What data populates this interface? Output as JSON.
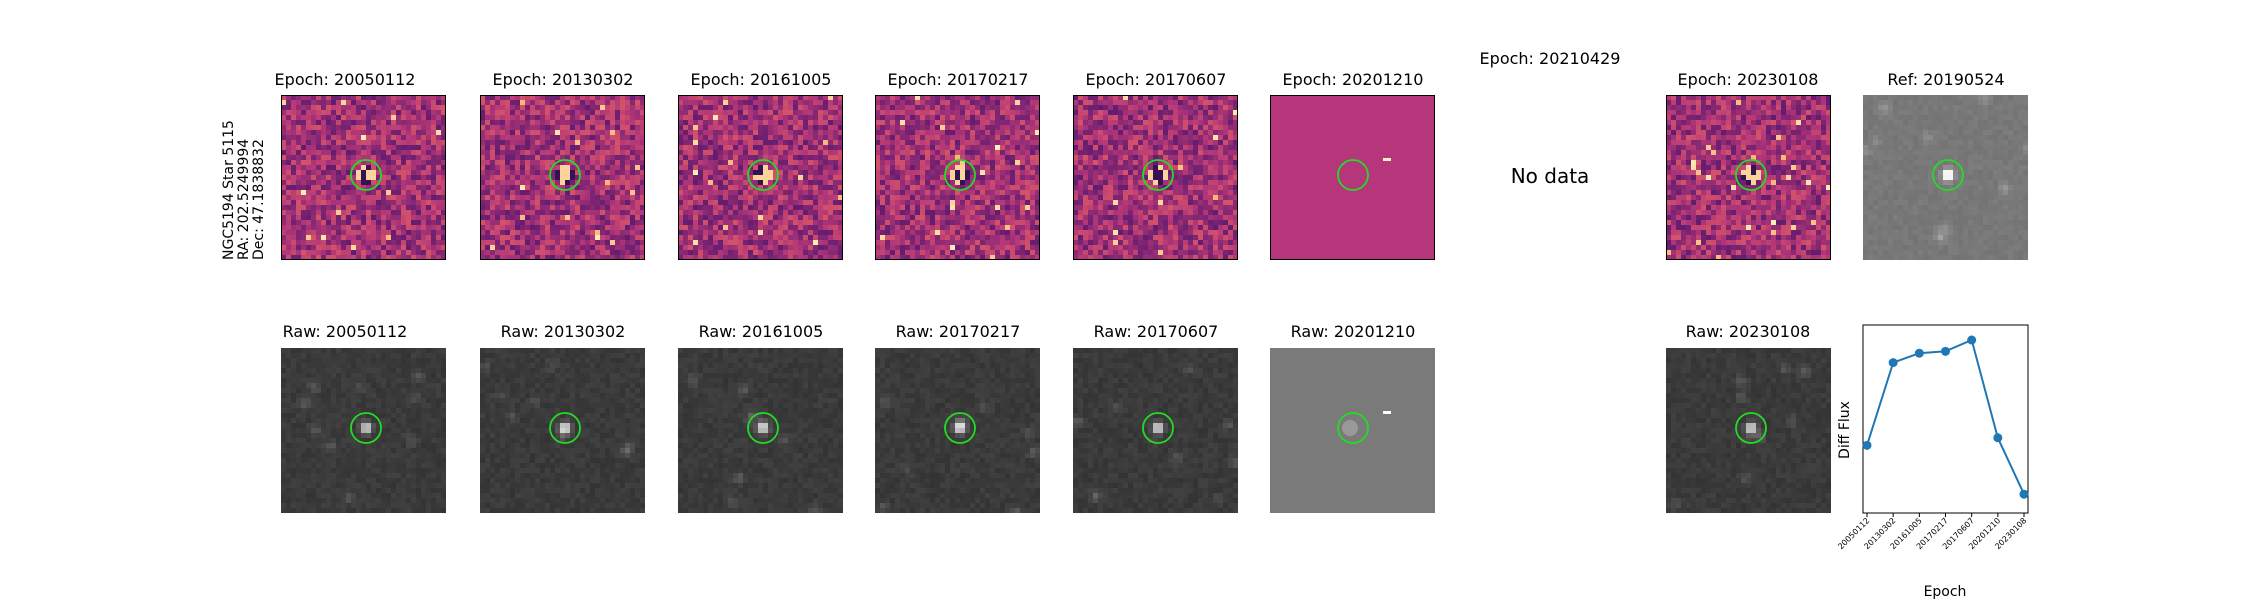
{
  "header": {
    "object_name": "NGC5194 Star 5115",
    "ra": "RA: 202.5249994",
    "dec": "Dec: 47.1838832"
  },
  "top_row": [
    {
      "title": "Epoch: 20050112",
      "kind": "diff"
    },
    {
      "title": "Epoch: 20130302",
      "kind": "diff"
    },
    {
      "title": "Epoch: 20161005",
      "kind": "diff"
    },
    {
      "title": "Epoch: 20170217",
      "kind": "diff"
    },
    {
      "title": "Epoch: 20170607",
      "kind": "diff"
    },
    {
      "title": "Epoch: 20201210",
      "kind": "flat"
    },
    {
      "title": "Epoch: 20210429",
      "kind": "nodata",
      "message": "No data"
    },
    {
      "title": "Epoch: 20230108",
      "kind": "diff"
    },
    {
      "title": "Ref: 20190524",
      "kind": "ref"
    }
  ],
  "bottom_row": [
    {
      "title": "Raw: 20050112",
      "kind": "raw"
    },
    {
      "title": "Raw: 20130302",
      "kind": "raw"
    },
    {
      "title": "Raw: 20161005",
      "kind": "raw"
    },
    {
      "title": "Raw: 20170217",
      "kind": "raw"
    },
    {
      "title": "Raw: 20170607",
      "kind": "raw"
    },
    {
      "title": "Raw: 20201210",
      "kind": "rawflat"
    },
    {
      "title": "Raw: 20230108",
      "kind": "raw"
    }
  ],
  "colors": {
    "aperture": "#22dd22",
    "magma_bg": "#b5367a",
    "raw_bg": "#3a3a3a",
    "line": "#1f77b4"
  },
  "chart_data": {
    "type": "line",
    "xlabel": "Epoch",
    "ylabel": "Diff Flux",
    "categories": [
      "20050112",
      "20130302",
      "20161005",
      "20170217",
      "20170607",
      "20201210",
      "20230108"
    ],
    "values": [
      0.36,
      0.8,
      0.85,
      0.86,
      0.92,
      0.4,
      0.1
    ],
    "ylim": [
      0.0,
      1.0
    ],
    "grid": false,
    "ytick_labels": false
  }
}
